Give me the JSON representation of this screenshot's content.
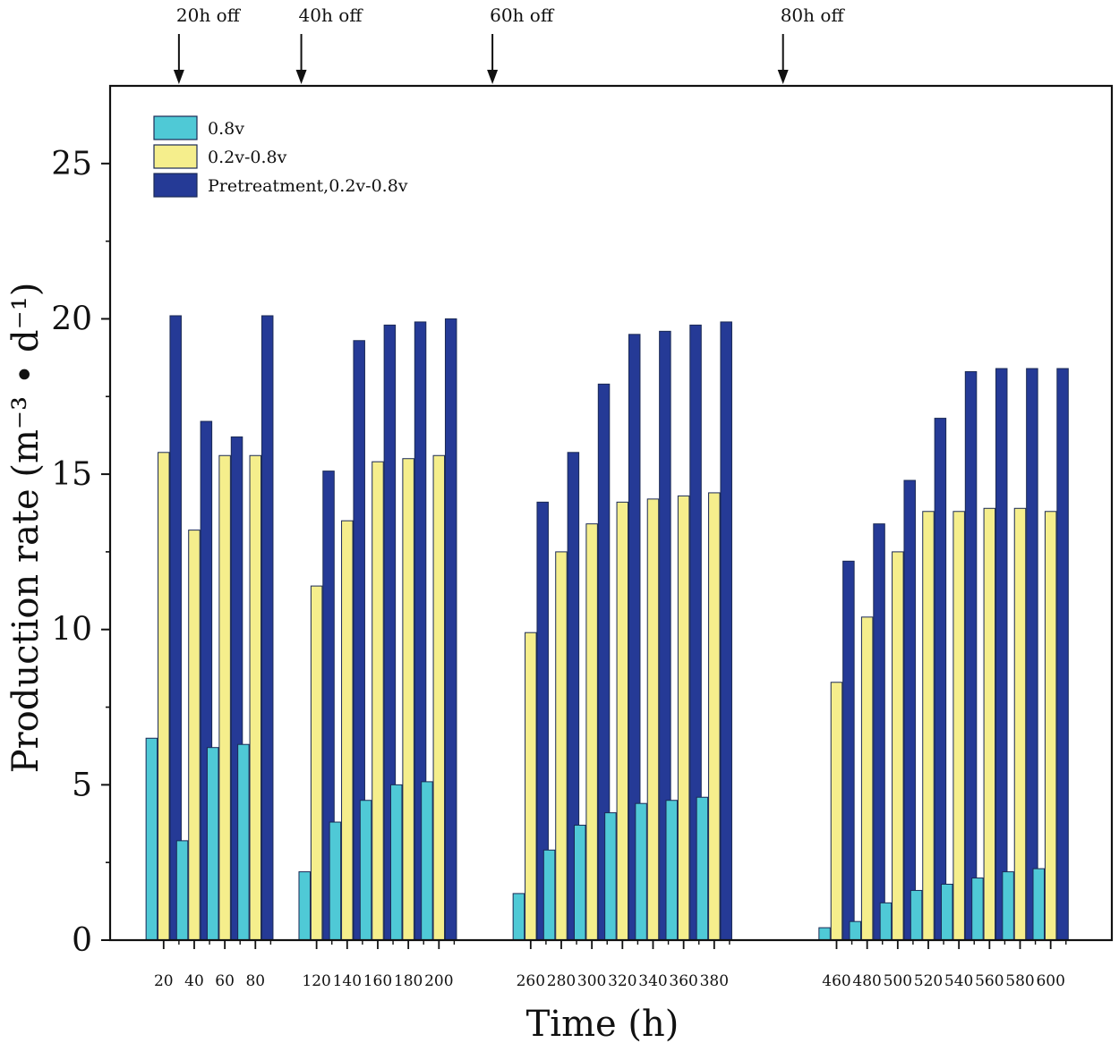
{
  "chart_data": {
    "type": "bar",
    "title": "",
    "xlabel": "Time (h)",
    "ylabel": "Production rate (m⁻³ • d⁻¹)",
    "ylim": [
      0,
      27.5
    ],
    "xlim": [
      -15,
      640
    ],
    "y_ticks": [
      0,
      5,
      10,
      15,
      20,
      25
    ],
    "legend_position": "top-left",
    "colors": {
      "0.8v": "#4fc9d6",
      "0.2v-0.8v": "#f5ee8c",
      "Pretreatment,0.2v-0.8v": "#253a96"
    },
    "x": [
      20,
      40,
      60,
      80,
      120,
      140,
      160,
      180,
      200,
      260,
      280,
      300,
      320,
      340,
      360,
      380,
      460,
      480,
      500,
      520,
      540,
      560,
      580,
      600
    ],
    "x_tick_labels": [
      "20",
      "40",
      "60",
      "80",
      "120",
      "140",
      "160",
      "180",
      "200",
      "260",
      "280",
      "300",
      "320",
      "340",
      "360",
      "380",
      "460",
      "480",
      "500",
      "520",
      "540",
      "560",
      "580",
      "600"
    ],
    "series": [
      {
        "name": "0.8v",
        "values": [
          6.5,
          3.2,
          6.2,
          6.3,
          2.2,
          3.8,
          4.5,
          5.0,
          5.1,
          1.5,
          2.9,
          3.7,
          4.1,
          4.4,
          4.5,
          4.6,
          0.4,
          0.6,
          1.2,
          1.6,
          1.8,
          2.0,
          2.2,
          2.3
        ]
      },
      {
        "name": "0.2v-0.8v",
        "values": [
          15.7,
          13.2,
          15.6,
          15.6,
          11.4,
          13.5,
          15.4,
          15.5,
          15.6,
          9.9,
          12.5,
          13.4,
          14.1,
          14.2,
          14.3,
          14.4,
          8.3,
          10.4,
          12.5,
          13.8,
          13.8,
          13.9,
          13.9,
          13.8
        ]
      },
      {
        "name": "Pretreatment,0.2v-0.8v",
        "values": [
          20.1,
          16.7,
          16.2,
          20.1,
          15.1,
          19.3,
          19.8,
          19.9,
          20.0,
          14.1,
          15.7,
          17.9,
          19.5,
          19.6,
          19.8,
          19.9,
          12.2,
          13.4,
          14.8,
          16.8,
          18.3,
          18.4,
          18.4,
          18.4
        ]
      }
    ],
    "annotations": [
      {
        "label": "20h off",
        "x": 30
      },
      {
        "label": "40h off",
        "x": 110
      },
      {
        "label": "60h off",
        "x": 235
      },
      {
        "label": "80h off",
        "x": 425
      }
    ]
  }
}
